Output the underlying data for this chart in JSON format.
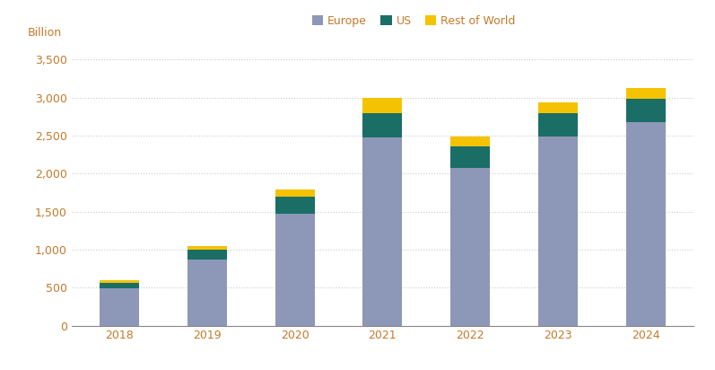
{
  "years": [
    "2018",
    "2019",
    "2020",
    "2021",
    "2022",
    "2023",
    "2024"
  ],
  "europe": [
    490,
    870,
    1470,
    2480,
    2070,
    2490,
    2680
  ],
  "us": [
    75,
    130,
    230,
    320,
    290,
    310,
    310
  ],
  "rest_of_world": [
    35,
    50,
    90,
    200,
    130,
    140,
    140
  ],
  "colors": {
    "europe": "#8d97b8",
    "us": "#1a6e66",
    "rest_of_world": "#f5c200"
  },
  "ylabel": "Billion",
  "ylim": [
    0,
    3700
  ],
  "yticks": [
    0,
    500,
    1000,
    1500,
    2000,
    2500,
    3000,
    3500
  ],
  "ytick_labels": [
    "0",
    "500",
    "1,000",
    "1,500",
    "2,000",
    "2,500",
    "3,000",
    "3,500"
  ],
  "legend_labels": [
    "Europe",
    "US",
    "Rest of World"
  ],
  "tick_label_color": "#c47a2a",
  "grid_color": "#cccccc",
  "background_color": "#ffffff",
  "bar_width": 0.45
}
